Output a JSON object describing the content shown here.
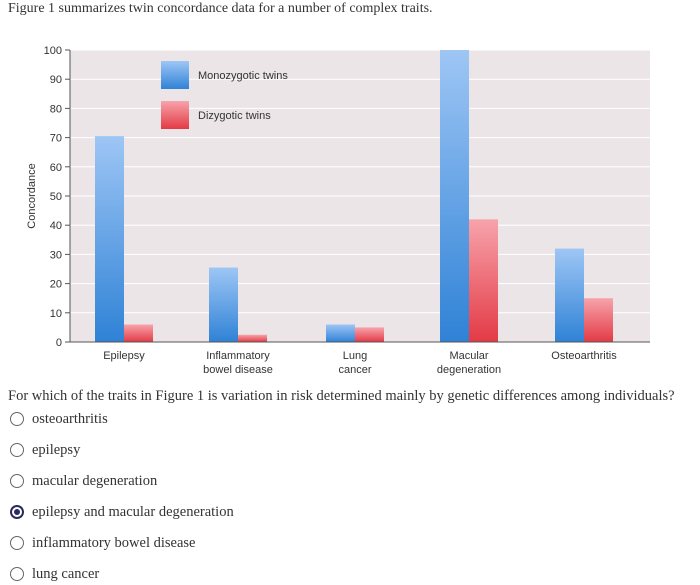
{
  "intro_text": "Figure 1 summarizes twin concordance data for a number of complex traits.",
  "question": "For which of the traits in Figure 1 is variation in risk determined mainly by genetic differences among individuals?",
  "options": [
    {
      "label": "osteoarthritis",
      "selected": false
    },
    {
      "label": "epilepsy",
      "selected": false
    },
    {
      "label": "macular degeneration",
      "selected": false
    },
    {
      "label": "epilepsy and macular degeneration",
      "selected": true
    },
    {
      "label": "inflammatory bowel disease",
      "selected": false
    },
    {
      "label": "lung cancer",
      "selected": false
    }
  ],
  "colors": {
    "plot_bg": "#ece5e8",
    "grid": "#ffffff",
    "mz_top": "#9ec6f5",
    "mz_bottom": "#2f82d6",
    "dz_top": "#f7a3ab",
    "dz_bottom": "#e33a45",
    "radio_selected": "#2a2a5e"
  },
  "chart_data": {
    "type": "bar",
    "title": "",
    "xlabel": "",
    "ylabel": "Concordance",
    "ylim": [
      0,
      100
    ],
    "yticks": [
      0,
      10,
      20,
      30,
      40,
      50,
      60,
      70,
      80,
      90,
      100
    ],
    "grid": true,
    "legend_position": "top-left",
    "categories": [
      [
        "Epilepsy"
      ],
      [
        "Inflammatory",
        "bowel disease"
      ],
      [
        "Lung",
        "cancer"
      ],
      [
        "Macular",
        "degeneration"
      ],
      [
        "Osteoarthritis"
      ]
    ],
    "series": [
      {
        "name": "Monozygotic twins",
        "values": [
          70.5,
          25.5,
          6,
          100,
          32
        ]
      },
      {
        "name": "Dizygotic twins",
        "values": [
          6,
          2.5,
          5,
          42,
          15
        ]
      }
    ]
  }
}
